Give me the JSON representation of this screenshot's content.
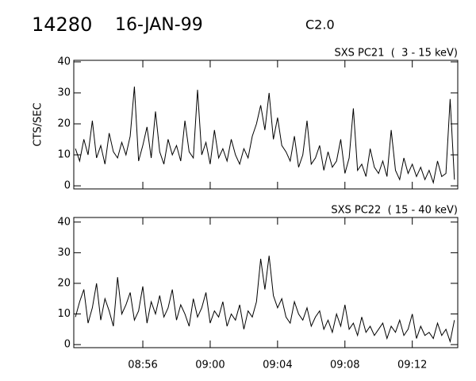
{
  "header": {
    "id": "14280",
    "date": "16-JAN-99",
    "class": "C2.0"
  },
  "chart_data": [
    {
      "type": "line",
      "title": "SXS PC21  (  3 - 15 keV)",
      "y_label": "CTS/SEC",
      "x": [
        52,
        52.25,
        52.5,
        52.75,
        53,
        53.25,
        53.5,
        53.75,
        54,
        54.25,
        54.5,
        54.75,
        55,
        55.25,
        55.5,
        55.75,
        56,
        56.25,
        56.5,
        56.75,
        57,
        57.25,
        57.5,
        57.75,
        58,
        58.25,
        58.5,
        58.75,
        59,
        59.25,
        59.5,
        59.75,
        60,
        60.25,
        60.5,
        60.75,
        61,
        61.25,
        61.5,
        61.75,
        62,
        62.25,
        62.5,
        62.75,
        63,
        63.25,
        63.5,
        63.75,
        64,
        64.25,
        64.5,
        64.75,
        65,
        65.25,
        65.5,
        65.75,
        66,
        66.25,
        66.5,
        66.75,
        67,
        67.25,
        67.5,
        67.75,
        68,
        68.25,
        68.5,
        68.75,
        69,
        69.25,
        69.5,
        69.75,
        70,
        70.25,
        70.5,
        70.75,
        71,
        71.25,
        71.5,
        71.75,
        72,
        72.25,
        72.5,
        72.75,
        73,
        73.25,
        73.5,
        73.75,
        74,
        74.25,
        74.5
      ],
      "series": [
        {
          "color": "#000000",
          "values": [
            12,
            8,
            15,
            10,
            21,
            9,
            13,
            7,
            17,
            11,
            9,
            14,
            10,
            16,
            32,
            8,
            13,
            19,
            9,
            24,
            11,
            7,
            15,
            10,
            13,
            8,
            21,
            11,
            9,
            31,
            10,
            14,
            7,
            18,
            9,
            12,
            8,
            15,
            10,
            7,
            12,
            9,
            16,
            20,
            26,
            18,
            30,
            15,
            22,
            13,
            11,
            8,
            16,
            6,
            10,
            21,
            7,
            9,
            13,
            5,
            11,
            6,
            8,
            15,
            4,
            9,
            25,
            5,
            7,
            3,
            12,
            6,
            4,
            8,
            3,
            18,
            5,
            2,
            9,
            4,
            7,
            3,
            6,
            2,
            5,
            1,
            8,
            3,
            4,
            28,
            2
          ]
        }
      ],
      "xlim": [
        51.9,
        74.7
      ],
      "ylim": [
        -1,
        40.5
      ],
      "xticks": [
        56,
        60,
        64,
        68,
        72
      ],
      "yticks": [
        0,
        10,
        20,
        30,
        40
      ]
    },
    {
      "type": "line",
      "title": "SXS PC22  ( 15 - 40 keV)",
      "x": [
        52,
        52.25,
        52.5,
        52.75,
        53,
        53.25,
        53.5,
        53.75,
        54,
        54.25,
        54.5,
        54.75,
        55,
        55.25,
        55.5,
        55.75,
        56,
        56.25,
        56.5,
        56.75,
        57,
        57.25,
        57.5,
        57.75,
        58,
        58.25,
        58.5,
        58.75,
        59,
        59.25,
        59.5,
        59.75,
        60,
        60.25,
        60.5,
        60.75,
        61,
        61.25,
        61.5,
        61.75,
        62,
        62.25,
        62.5,
        62.75,
        63,
        63.25,
        63.5,
        63.75,
        64,
        64.25,
        64.5,
        64.75,
        65,
        65.25,
        65.5,
        65.75,
        66,
        66.25,
        66.5,
        66.75,
        67,
        67.25,
        67.5,
        67.75,
        68,
        68.25,
        68.5,
        68.75,
        69,
        69.25,
        69.5,
        69.75,
        70,
        70.25,
        70.5,
        70.75,
        71,
        71.25,
        71.5,
        71.75,
        72,
        72.25,
        72.5,
        72.75,
        73,
        73.25,
        73.5,
        73.75,
        74,
        74.25,
        74.5
      ],
      "series": [
        {
          "color": "#000000",
          "values": [
            9,
            14,
            18,
            7,
            12,
            20,
            8,
            15,
            11,
            6,
            22,
            10,
            13,
            17,
            8,
            11,
            19,
            7,
            14,
            10,
            16,
            9,
            12,
            18,
            8,
            13,
            10,
            6,
            15,
            9,
            12,
            17,
            7,
            11,
            9,
            14,
            6,
            10,
            8,
            13,
            5,
            11,
            9,
            14,
            28,
            18,
            29,
            16,
            12,
            15,
            9,
            7,
            14,
            10,
            8,
            12,
            6,
            9,
            11,
            5,
            8,
            4,
            10,
            6,
            13,
            5,
            7,
            3,
            9,
            4,
            6,
            3,
            5,
            7,
            2,
            6,
            4,
            8,
            3,
            5,
            10,
            2,
            6,
            3,
            4,
            2,
            7,
            3,
            5,
            1,
            8
          ]
        }
      ],
      "xlim": [
        51.9,
        74.7
      ],
      "ylim": [
        -1,
        41.5
      ],
      "xticks": [
        {
          "value": 56,
          "label": "08:56"
        },
        {
          "value": 60,
          "label": "09:00"
        },
        {
          "value": 64,
          "label": "09:04"
        },
        {
          "value": 68,
          "label": "09:08"
        },
        {
          "value": 72,
          "label": "09:12"
        }
      ],
      "yticks": [
        0,
        10,
        20,
        30,
        40
      ]
    }
  ]
}
